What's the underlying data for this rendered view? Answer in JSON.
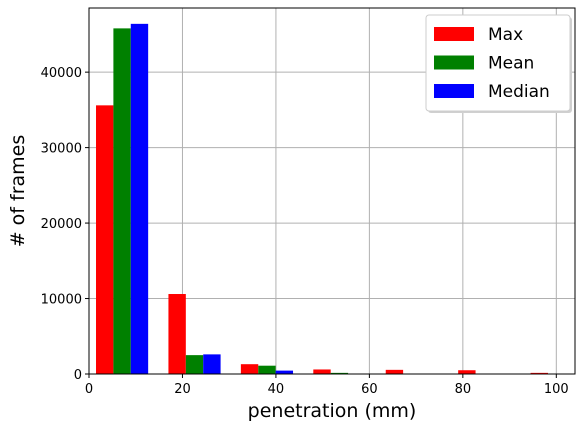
{
  "chart_data": {
    "type": "bar",
    "title": "",
    "xlabel": "penetration (mm)",
    "ylabel": "# of frames",
    "xlim": [
      0,
      104
    ],
    "ylim": [
      0,
      48500
    ],
    "xticks": [
      0,
      20,
      40,
      60,
      80,
      100
    ],
    "yticks": [
      0,
      10000,
      20000,
      30000,
      40000
    ],
    "grid": true,
    "legend_position": "top-right",
    "bin_edges": [
      1.5,
      17,
      32.5,
      48,
      63.5,
      79,
      94.5
    ],
    "series": [
      {
        "name": "Max",
        "color": "#ff0000",
        "values": [
          35600,
          10600,
          1300,
          600,
          550,
          500,
          150
        ]
      },
      {
        "name": "Mean",
        "color": "#008000",
        "values": [
          45800,
          2500,
          1100,
          150,
          0,
          0,
          0
        ]
      },
      {
        "name": "Median",
        "color": "#0000ff",
        "values": [
          46400,
          2600,
          450,
          0,
          0,
          0,
          0
        ]
      }
    ]
  }
}
